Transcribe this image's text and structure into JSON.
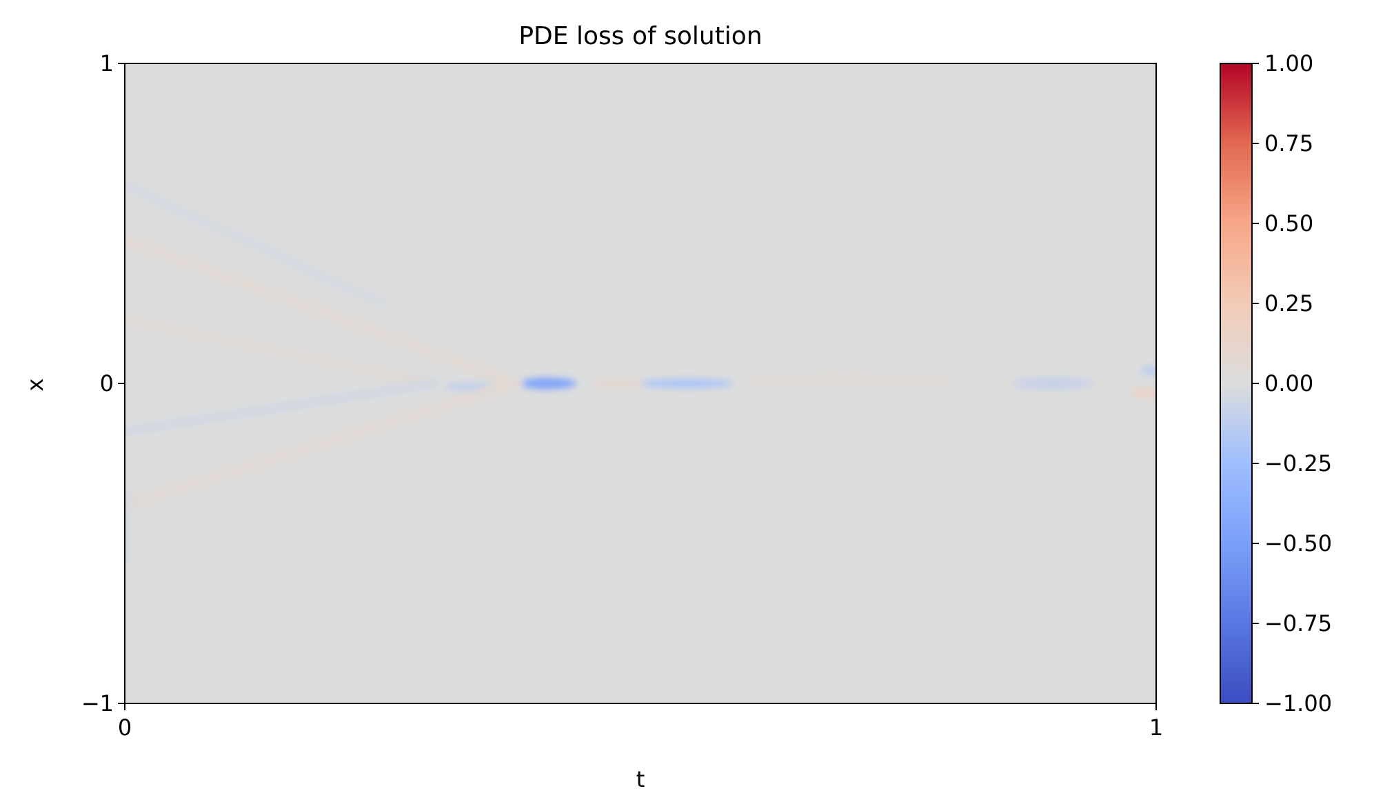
{
  "chart_data": {
    "type": "heatmap",
    "title": "PDE loss of solution",
    "xlabel": "t",
    "ylabel": "x",
    "xlim": [
      0,
      1
    ],
    "ylim": [
      -1,
      1
    ],
    "xticks": [
      {
        "value": 0,
        "label": "0"
      },
      {
        "value": 1,
        "label": "1"
      }
    ],
    "yticks": [
      {
        "value": -1,
        "label": "−1"
      },
      {
        "value": 0,
        "label": "0"
      },
      {
        "value": 1,
        "label": "1"
      }
    ],
    "colormap": "coolwarm",
    "background_color": "#dcdddd",
    "grid": false,
    "colorbar": {
      "vmin": -1.0,
      "vmax": 1.0,
      "position": "right",
      "ticks": [
        {
          "value": 1.0,
          "label": "1.00"
        },
        {
          "value": 0.75,
          "label": "0.75"
        },
        {
          "value": 0.5,
          "label": "0.50"
        },
        {
          "value": 0.25,
          "label": "0.25"
        },
        {
          "value": 0.0,
          "label": "0.00"
        },
        {
          "value": -0.25,
          "label": "−0.25"
        },
        {
          "value": -0.5,
          "label": "−0.50"
        },
        {
          "value": -0.75,
          "label": "−0.75"
        },
        {
          "value": -1.0,
          "label": "−1.00"
        }
      ],
      "stops": [
        {
          "value": -1.0,
          "color": "#3b4cc0"
        },
        {
          "value": -0.75,
          "color": "#5977e3"
        },
        {
          "value": -0.5,
          "color": "#7b9ff9"
        },
        {
          "value": -0.25,
          "color": "#9ebeff"
        },
        {
          "value": 0.0,
          "color": "#dcdddd"
        },
        {
          "value": 0.25,
          "color": "#f2cbb7"
        },
        {
          "value": 0.5,
          "color": "#f7a688"
        },
        {
          "value": 0.75,
          "color": "#e26952"
        },
        {
          "value": 1.0,
          "color": "#b40426"
        }
      ]
    },
    "features": [
      {
        "kind": "blob",
        "t": 0.41,
        "x": 0.0,
        "rt": 0.028,
        "rx": 0.018,
        "value": -0.45
      },
      {
        "kind": "blob",
        "t": 0.48,
        "x": 0.0,
        "rt": 0.03,
        "rx": 0.014,
        "value": 0.08
      },
      {
        "kind": "blob",
        "t": 0.545,
        "x": 0.0,
        "rt": 0.045,
        "rx": 0.014,
        "value": -0.2
      },
      {
        "kind": "blob",
        "t": 0.34,
        "x": -0.01,
        "rt": 0.03,
        "rx": 0.012,
        "value": -0.12
      },
      {
        "kind": "blob",
        "t": 0.7,
        "x": 0.01,
        "rt": 0.1,
        "rx": 0.02,
        "value": 0.06
      },
      {
        "kind": "blob",
        "t": 0.9,
        "x": 0.0,
        "rt": 0.045,
        "rx": 0.015,
        "value": -0.18
      },
      {
        "kind": "blob",
        "t": 0.99,
        "x": -0.03,
        "rt": 0.015,
        "rx": 0.02,
        "value": 0.12
      },
      {
        "kind": "blob",
        "t": 0.995,
        "x": 0.04,
        "rt": 0.01,
        "rx": 0.015,
        "value": -0.12
      },
      {
        "kind": "band",
        "t0": 0.0,
        "x0": 0.45,
        "t1": 0.38,
        "x1": 0.0,
        "width": 0.04,
        "value": 0.06
      },
      {
        "kind": "band",
        "t0": 0.0,
        "x0": -0.38,
        "t1": 0.38,
        "x1": 0.0,
        "width": 0.04,
        "value": 0.06
      },
      {
        "kind": "band",
        "t0": 0.0,
        "x0": 0.2,
        "t1": 0.3,
        "x1": 0.0,
        "width": 0.03,
        "value": 0.05
      },
      {
        "kind": "band",
        "t0": 0.0,
        "x0": -0.15,
        "t1": 0.3,
        "x1": 0.0,
        "width": 0.03,
        "value": -0.04
      },
      {
        "kind": "band",
        "t0": 0.0,
        "x0": -0.55,
        "t1": 0.0,
        "x1": -0.35,
        "width": 0.03,
        "value": -0.04
      },
      {
        "kind": "band",
        "t0": 0.0,
        "x0": 0.62,
        "t1": 0.25,
        "x1": 0.25,
        "width": 0.03,
        "value": -0.03
      },
      {
        "kind": "band",
        "t0": 0.6,
        "x0": 0.0,
        "t1": 0.95,
        "x1": 0.0,
        "width": 0.01,
        "value": 0.04
      }
    ]
  }
}
